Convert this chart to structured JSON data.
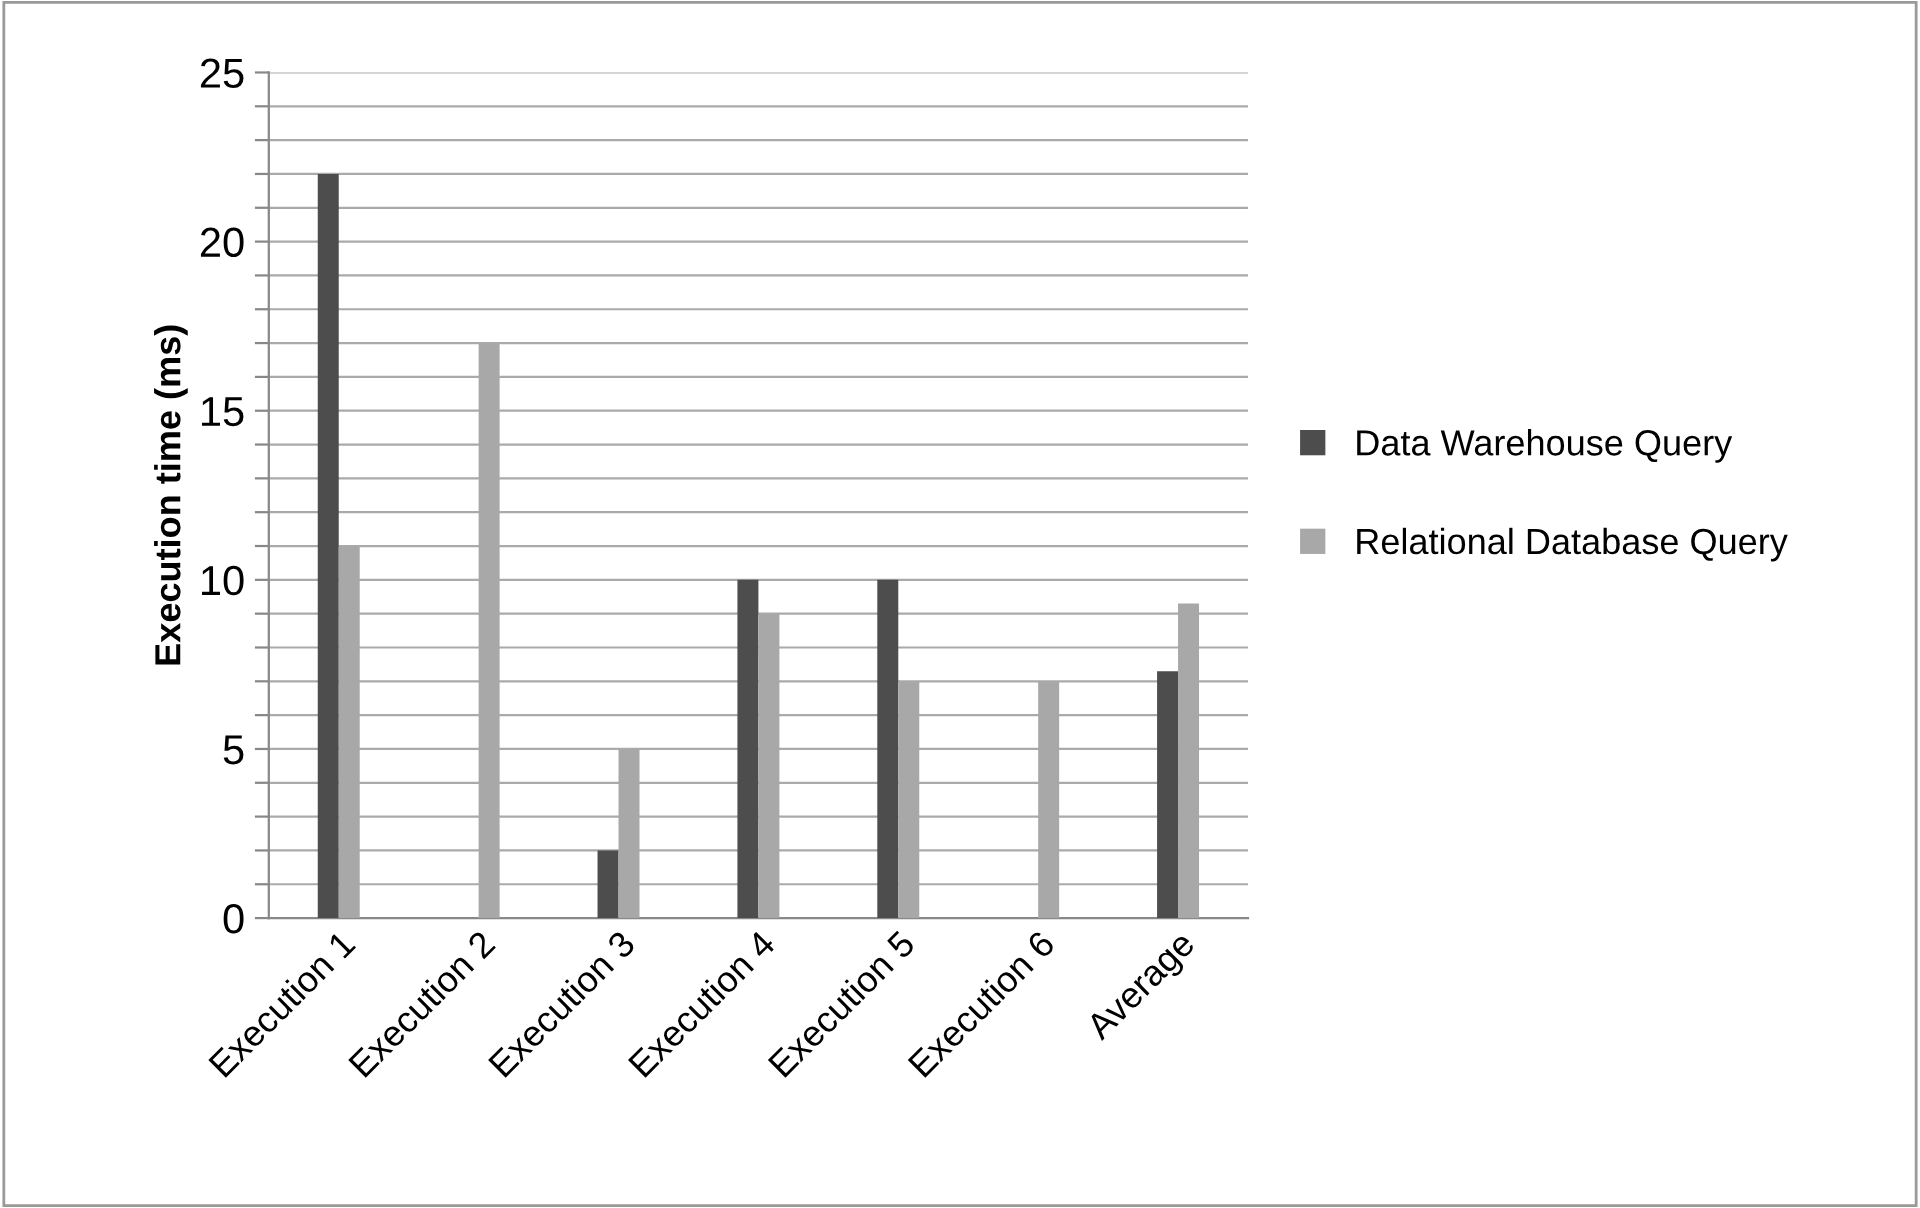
{
  "chart_data": {
    "type": "bar",
    "ylabel": "Execution time (ms)",
    "categories": [
      "Execution 1",
      "Execution 2",
      "Execution 3",
      "Execution 4",
      "Execution 5",
      "Execution 6",
      "Average"
    ],
    "series": [
      {
        "name": "Data Warehouse Query",
        "color": "#4d4d4d",
        "values": [
          22,
          0,
          2,
          10,
          10,
          0,
          7.3
        ]
      },
      {
        "name": "Relational Database Query",
        "color": "#a8a8a8",
        "values": [
          11,
          17,
          5,
          9,
          7,
          7,
          9.3
        ]
      }
    ],
    "ylim": [
      0,
      25
    ],
    "yticks": [
      0,
      {
        "value": 1,
        "label": null
      },
      {
        "value": 2,
        "label": null
      },
      {
        "value": 3,
        "label": null
      },
      {
        "value": 4,
        "label": null
      },
      5,
      {
        "value": 6,
        "label": null
      },
      {
        "value": 7,
        "label": null
      },
      {
        "value": 8,
        "label": null
      },
      {
        "value": 9,
        "label": null
      },
      10,
      {
        "value": 11,
        "label": null
      },
      {
        "value": 12,
        "label": null
      },
      {
        "value": 13,
        "label": null
      },
      {
        "value": 14,
        "label": null
      },
      15,
      {
        "value": 16,
        "label": null
      },
      {
        "value": 17,
        "label": null
      },
      {
        "value": 18,
        "label": null
      },
      {
        "value": 19,
        "label": null
      },
      20,
      {
        "value": 21,
        "label": null
      },
      {
        "value": 22,
        "label": null
      },
      {
        "value": 23,
        "label": null
      },
      {
        "value": 24,
        "label": null
      },
      25
    ],
    "grid": "y",
    "legend": "right"
  }
}
